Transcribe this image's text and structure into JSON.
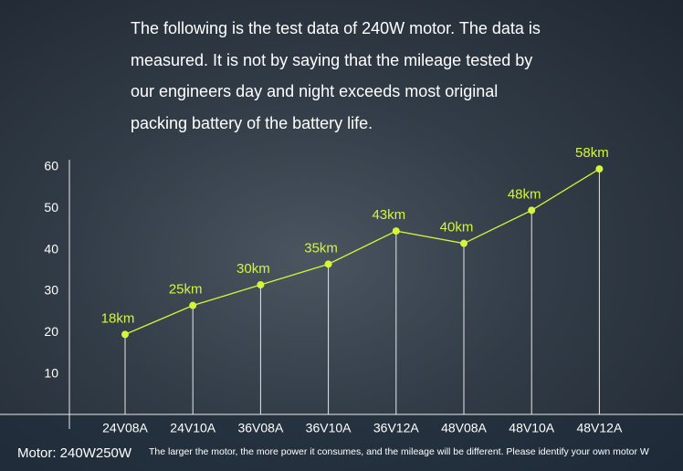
{
  "chart_data": {
    "type": "line",
    "title": "The following is the test data of 240W motor. The data is measured. It is not by saying that the mileage tested by our engineers day and night exceeds most original packing battery of the battery life.",
    "categories": [
      "24V08A",
      "24V10A",
      "36V08A",
      "36V10A",
      "36V12A",
      "48V08A",
      "48V10A",
      "48V12A"
    ],
    "values": [
      18,
      25,
      30,
      35,
      43,
      40,
      48,
      58
    ],
    "value_labels": [
      "18km",
      "25km",
      "30km",
      "35km",
      "43km",
      "40km",
      "48km",
      "58km"
    ],
    "color": "#d4f53a",
    "ylim": [
      0,
      60
    ],
    "yticks": [
      10,
      20,
      30,
      40,
      50,
      60
    ],
    "annotations": [
      "Motor: 240W250W",
      "The larger the motor, the more power it consumes, and the mileage will be different. Please identify your own motor W"
    ]
  }
}
